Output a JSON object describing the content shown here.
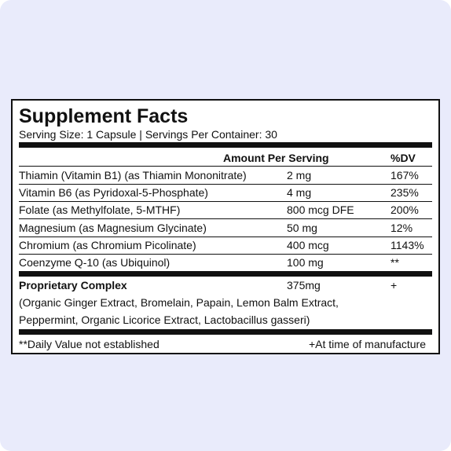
{
  "panel": {
    "title": "Supplement Facts",
    "serving": "Serving Size: 1 Capsule | Servings Per Container: 30",
    "header": {
      "amount": "Amount Per Serving",
      "dv": "%DV"
    },
    "rows": [
      {
        "name": "Thiamin (Vitamin B1) (as Thiamin Mononitrate)",
        "amount": "2 mg",
        "dv": "167%"
      },
      {
        "name": "Vitamin B6 (as Pyridoxal-5-Phosphate)",
        "amount": "4 mg",
        "dv": "235%"
      },
      {
        "name": "Folate (as Methylfolate, 5-MTHF)",
        "amount": "800 mcg DFE",
        "dv": "200%"
      },
      {
        "name": "Magnesium (as Magnesium Glycinate)",
        "amount": "50 mg",
        "dv": "12%"
      },
      {
        "name": "Chromium (as Chromium Picolinate)",
        "amount": "400 mcg",
        "dv": "1143%"
      },
      {
        "name": "Coenzyme Q-10 (as Ubiquinol)",
        "amount": "100 mg",
        "dv": "**"
      }
    ],
    "complex": {
      "name": "Proprietary Complex",
      "amount": "375mg",
      "dv": "+",
      "description_lines": [
        "(Organic Ginger Extract, Bromelain, Papain, Lemon Balm Extract,",
        "Peppermint, Organic Licorice Extract, Lactobacillus gasseri)"
      ]
    },
    "footer": {
      "left": "**Daily Value not established",
      "right": "+At time of manufacture"
    }
  }
}
